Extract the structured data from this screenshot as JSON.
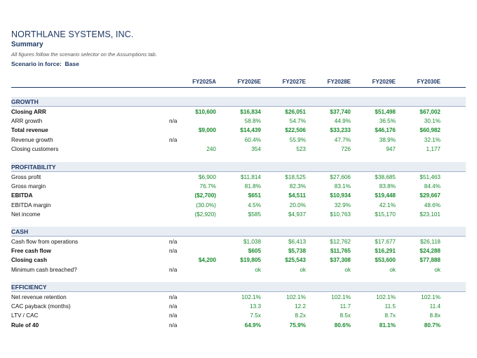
{
  "company": "NORTHLANE SYSTEMS, INC.",
  "subtitle": "Summary",
  "note": "All figures follow the scenario selector on the Assumptions tab.",
  "scenario": {
    "label": "Scenario in force:",
    "value": "Base"
  },
  "columns": [
    "FY2025A",
    "FY2026E",
    "FY2027E",
    "FY2028E",
    "FY2029E",
    "FY2030E"
  ],
  "colors": {
    "header": "#1f3864",
    "value": "#1a8a2e",
    "band": "#e8edf4"
  },
  "sections": [
    {
      "title": "GROWTH",
      "rows": [
        {
          "label": "Closing ARR",
          "bold": true,
          "na": "",
          "values": [
            "$10,600",
            "$16,834",
            "$26,051",
            "$37,740",
            "$51,498",
            "$67,002"
          ]
        },
        {
          "label": "ARR growth",
          "bold": false,
          "na": "n/a",
          "values": [
            "",
            "58.8%",
            "54.7%",
            "44.9%",
            "36.5%",
            "30.1%"
          ]
        },
        {
          "label": "Total revenue",
          "bold": true,
          "na": "",
          "values": [
            "$9,000",
            "$14,439",
            "$22,506",
            "$33,233",
            "$46,176",
            "$60,982"
          ]
        },
        {
          "label": "Revenue growth",
          "bold": false,
          "na": "n/a",
          "values": [
            "",
            "60.4%",
            "55.9%",
            "47.7%",
            "38.9%",
            "32.1%"
          ]
        },
        {
          "label": "Closing customers",
          "bold": false,
          "na": "",
          "values": [
            "240",
            "354",
            "523",
            "726",
            "947",
            "1,177"
          ]
        }
      ]
    },
    {
      "title": "PROFITABILITY",
      "rows": [
        {
          "label": "Gross profit",
          "bold": false,
          "na": "",
          "values": [
            "$6,900",
            "$11,814",
            "$18,525",
            "$27,606",
            "$38,685",
            "$51,463"
          ]
        },
        {
          "label": "Gross margin",
          "bold": false,
          "na": "",
          "values": [
            "76.7%",
            "81.8%",
            "82.3%",
            "83.1%",
            "83.8%",
            "84.4%"
          ]
        },
        {
          "label": "EBITDA",
          "bold": true,
          "na": "",
          "values": [
            "($2,700)",
            "$651",
            "$4,511",
            "$10,934",
            "$19,448",
            "$29,667"
          ]
        },
        {
          "label": "EBITDA margin",
          "bold": false,
          "na": "",
          "values": [
            "(30.0%)",
            "4.5%",
            "20.0%",
            "32.9%",
            "42.1%",
            "48.6%"
          ]
        },
        {
          "label": "Net income",
          "bold": false,
          "na": "",
          "values": [
            "($2,920)",
            "$585",
            "$4,937",
            "$10,763",
            "$15,170",
            "$23,101"
          ]
        }
      ]
    },
    {
      "title": "CASH",
      "rows": [
        {
          "label": "Cash flow from operations",
          "bold": false,
          "na": "n/a",
          "values": [
            "",
            "$1,038",
            "$6,413",
            "$12,762",
            "$17,677",
            "$26,118"
          ]
        },
        {
          "label": "Free cash flow",
          "bold": true,
          "na": "n/a",
          "values": [
            "",
            "$605",
            "$5,738",
            "$11,765",
            "$16,291",
            "$24,288"
          ]
        },
        {
          "label": "Closing cash",
          "bold": true,
          "na": "",
          "values": [
            "$4,200",
            "$19,805",
            "$25,543",
            "$37,308",
            "$53,600",
            "$77,888"
          ]
        },
        {
          "label": "Minimum cash breached?",
          "bold": false,
          "na": "n/a",
          "values": [
            "",
            "ok",
            "ok",
            "ok",
            "ok",
            "ok"
          ]
        }
      ]
    },
    {
      "title": "EFFICIENCY",
      "rows": [
        {
          "label": "Net revenue retention",
          "bold": false,
          "na": "n/a",
          "values": [
            "",
            "102.1%",
            "102.1%",
            "102.1%",
            "102.1%",
            "102.1%"
          ]
        },
        {
          "label": "CAC payback (months)",
          "bold": false,
          "na": "n/a",
          "values": [
            "",
            "13.3",
            "12.2",
            "11.7",
            "11.5",
            "11.4"
          ]
        },
        {
          "label": "LTV / CAC",
          "bold": false,
          "na": "n/a",
          "values": [
            "",
            "7.5x",
            "8.2x",
            "8.5x",
            "8.7x",
            "8.8x"
          ]
        },
        {
          "label": "Rule of 40",
          "bold": true,
          "na": "n/a",
          "values": [
            "",
            "64.9%",
            "75.9%",
            "80.6%",
            "81.1%",
            "80.7%"
          ]
        }
      ]
    }
  ]
}
